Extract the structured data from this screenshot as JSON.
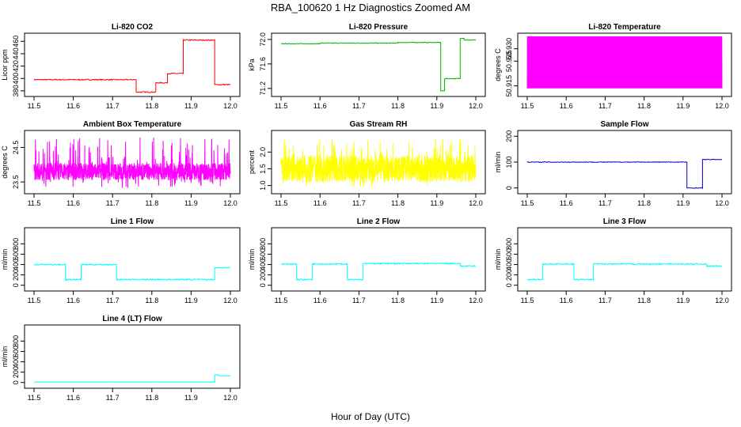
{
  "figure": {
    "title": "RBA_100620  1 Hz Diagnostics Zoomed AM",
    "xlabel": "Hour of Day (UTC)"
  },
  "chart_data": [
    {
      "type": "line",
      "title": "Li-820 CO2",
      "ylabel": "Licor ppm",
      "color": "#ff0000",
      "xlim": [
        11.5,
        12.0
      ],
      "ylim": [
        376,
        468
      ],
      "x_ticks": [
        "11.5",
        "11.6",
        "11.7",
        "11.8",
        "11.9",
        "12.0"
      ],
      "y_ticks": [
        380,
        400,
        420,
        440,
        460
      ],
      "segments": [
        {
          "x0": 11.5,
          "x1": 11.76,
          "y": 398
        },
        {
          "x0": 11.76,
          "x1": 11.81,
          "y": 378
        },
        {
          "x0": 11.81,
          "x1": 11.84,
          "y": 393
        },
        {
          "x0": 11.84,
          "x1": 11.88,
          "y": 408
        },
        {
          "x0": 11.88,
          "x1": 11.96,
          "y": 462
        },
        {
          "x0": 11.96,
          "x1": 12.0,
          "y": 390
        }
      ],
      "noise": 0.8
    },
    {
      "type": "line",
      "title": "Li-820 Pressure",
      "ylabel": "kPa",
      "color": "#00b000",
      "xlim": [
        11.5,
        12.0
      ],
      "ylim": [
        71.12,
        72.05
      ],
      "x_ticks": [
        "11.5",
        "11.6",
        "11.7",
        "11.8",
        "11.9",
        "12.0"
      ],
      "y_ticks": [
        71.2,
        71.6,
        72.0
      ],
      "y_tick_labels": [
        "71.2",
        "71.6",
        "72.0"
      ],
      "segments": [
        {
          "x0": 11.5,
          "x1": 11.6,
          "y": 71.93
        },
        {
          "x0": 11.6,
          "x1": 11.8,
          "y": 71.94
        },
        {
          "x0": 11.8,
          "x1": 11.91,
          "y": 71.95
        },
        {
          "x0": 11.91,
          "x1": 11.92,
          "y": 71.16
        },
        {
          "x0": 11.92,
          "x1": 11.96,
          "y": 71.36
        },
        {
          "x0": 11.96,
          "x1": 11.97,
          "y": 72.02
        },
        {
          "x0": 11.97,
          "x1": 12.0,
          "y": 71.99
        }
      ],
      "noise": 0.005
    },
    {
      "type": "line",
      "title": "Li-820 Temperature",
      "ylabel": "degrees C",
      "color": "#ff00ff",
      "xlim": [
        11.5,
        12.0
      ],
      "ylim": [
        50.912,
        50.935
      ],
      "x_ticks": [
        "11.5",
        "11.6",
        "11.7",
        "11.8",
        "11.9",
        "12.0"
      ],
      "y_ticks": [
        50.915,
        50.925,
        50.93
      ],
      "y_tick_labels": [
        "50.915",
        "50.925",
        "50.930"
      ],
      "values_between": [
        50.914,
        50.935
      ],
      "note_style": "dense-oscillation"
    },
    {
      "type": "line",
      "title": "Ambient Box Temperature",
      "ylabel": "degrees C",
      "color": "#ff00ff",
      "xlim": [
        11.5,
        12.0
      ],
      "ylim": [
        23.25,
        24.9
      ],
      "x_ticks": [
        "11.5",
        "11.6",
        "11.7",
        "11.8",
        "11.9",
        "12.0"
      ],
      "y_ticks": [
        23.5,
        24.5
      ],
      "y_tick_labels": [
        "23.5",
        "24.5"
      ],
      "band": [
        23.55,
        24.05
      ],
      "spike_range": [
        23.3,
        24.8
      ]
    },
    {
      "type": "line",
      "title": "Gas Stream RH",
      "ylabel": "percent",
      "color": "#ffff00",
      "xlim": [
        11.5,
        12.0
      ],
      "ylim": [
        0.85,
        2.55
      ],
      "x_ticks": [
        "11.5",
        "11.6",
        "11.7",
        "11.8",
        "11.9",
        "12.0"
      ],
      "y_ticks": [
        1.0,
        1.5,
        2.0
      ],
      "y_tick_labels": [
        "1.0",
        "1.5",
        "2.0"
      ],
      "band": [
        1.1,
        1.9
      ],
      "spike_range": [
        0.95,
        2.4
      ]
    },
    {
      "type": "line",
      "title": "Sample Flow",
      "ylabel": "ml/min",
      "color": "#0000cc",
      "xlim": [
        11.5,
        12.0
      ],
      "ylim": [
        -10,
        210
      ],
      "x_ticks": [
        "11.5",
        "11.6",
        "11.7",
        "11.8",
        "11.9",
        "12.0"
      ],
      "y_ticks": [
        0,
        100,
        200
      ],
      "segments": [
        {
          "x0": 11.5,
          "x1": 11.91,
          "y": 100
        },
        {
          "x0": 11.91,
          "x1": 11.95,
          "y": 0
        },
        {
          "x0": 11.95,
          "x1": 12.0,
          "y": 110
        }
      ],
      "noise": 1.2
    },
    {
      "type": "line",
      "title": "Line 1 Flow",
      "ylabel": "ml/min",
      "color": "#00ffff",
      "xlim": [
        11.5,
        12.0
      ],
      "ylim": [
        -50,
        1050
      ],
      "x_ticks": [
        "11.5",
        "11.6",
        "11.7",
        "11.8",
        "11.9",
        "12.0"
      ],
      "y_ticks": [
        0,
        200,
        400,
        600,
        800
      ],
      "segments": [
        {
          "x0": 11.5,
          "x1": 11.58,
          "y": 400
        },
        {
          "x0": 11.58,
          "x1": 11.62,
          "y": 110
        },
        {
          "x0": 11.62,
          "x1": 11.71,
          "y": 400
        },
        {
          "x0": 11.71,
          "x1": 11.96,
          "y": 110
        },
        {
          "x0": 11.96,
          "x1": 12.0,
          "y": 340
        }
      ],
      "noise": 12
    },
    {
      "type": "line",
      "title": "Line 2 Flow",
      "ylabel": "ml/min",
      "color": "#00ffff",
      "xlim": [
        11.5,
        12.0
      ],
      "ylim": [
        -50,
        1050
      ],
      "x_ticks": [
        "11.5",
        "11.6",
        "11.7",
        "11.8",
        "11.9",
        "12.0"
      ],
      "y_ticks": [
        0,
        200,
        400,
        600,
        800
      ],
      "segments": [
        {
          "x0": 11.5,
          "x1": 11.54,
          "y": 410
        },
        {
          "x0": 11.54,
          "x1": 11.58,
          "y": 110
        },
        {
          "x0": 11.58,
          "x1": 11.67,
          "y": 410
        },
        {
          "x0": 11.67,
          "x1": 11.71,
          "y": 110
        },
        {
          "x0": 11.71,
          "x1": 11.96,
          "y": 420
        },
        {
          "x0": 11.96,
          "x1": 12.0,
          "y": 370
        }
      ],
      "noise": 12
    },
    {
      "type": "line",
      "title": "Line 3 Flow",
      "ylabel": "ml/min",
      "color": "#00ffff",
      "xlim": [
        11.5,
        12.0
      ],
      "ylim": [
        -50,
        1050
      ],
      "x_ticks": [
        "11.5",
        "11.6",
        "11.7",
        "11.8",
        "11.9",
        "12.0"
      ],
      "y_ticks": [
        0,
        200,
        400,
        600,
        800
      ],
      "segments": [
        {
          "x0": 11.5,
          "x1": 11.54,
          "y": 110
        },
        {
          "x0": 11.54,
          "x1": 11.62,
          "y": 410
        },
        {
          "x0": 11.62,
          "x1": 11.67,
          "y": 110
        },
        {
          "x0": 11.67,
          "x1": 11.96,
          "y": 410
        },
        {
          "x0": 11.96,
          "x1": 12.0,
          "y": 370
        }
      ],
      "noise": 12
    },
    {
      "type": "line",
      "title": "Line 4 (LT) Flow",
      "ylabel": "ml/min",
      "color": "#00ffff",
      "xlim": [
        11.5,
        12.0
      ],
      "ylim": [
        -50,
        1050
      ],
      "x_ticks": [
        "11.5",
        "11.6",
        "11.7",
        "11.8",
        "11.9",
        "12.0"
      ],
      "y_ticks": [
        0,
        200,
        400,
        600,
        800
      ],
      "segments": [
        {
          "x0": 11.5,
          "x1": 11.96,
          "y": 10
        },
        {
          "x0": 11.96,
          "x1": 11.97,
          "y": 150
        },
        {
          "x0": 11.97,
          "x1": 12.0,
          "y": 130
        }
      ],
      "noise": 2
    }
  ]
}
